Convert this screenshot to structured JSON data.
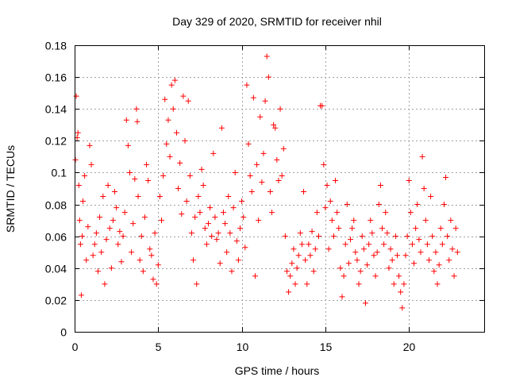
{
  "chart_data": {
    "type": "scatter",
    "title": "Day 329 of 2020, SRMTID for receiver nhil",
    "xlabel": "GPS time / hours",
    "ylabel": "SRMTID / TECUs",
    "xlim": [
      0,
      24.5
    ],
    "ylim": [
      0,
      0.18
    ],
    "xticks": [
      0,
      5,
      10,
      15,
      20
    ],
    "xtick_labels": [
      "0",
      "5",
      "10",
      "15",
      "20"
    ],
    "yticks": [
      0,
      0.02,
      0.04,
      0.06,
      0.08,
      0.1,
      0.12,
      0.14,
      0.16,
      0.18
    ],
    "ytick_labels": [
      "0",
      "0.02",
      "0.04",
      "0.06",
      "0.08",
      "0.1",
      "0.12",
      "0.14",
      "0.16",
      "0.18"
    ],
    "grid": true,
    "marker": "+",
    "color": "#ff0000",
    "series": [
      {
        "name": "SRMTID",
        "points": [
          [
            0.05,
            0.108
          ],
          [
            0.1,
            0.148
          ],
          [
            0.15,
            0.122
          ],
          [
            0.2,
            0.125
          ],
          [
            0.25,
            0.092
          ],
          [
            0.3,
            0.07
          ],
          [
            0.35,
            0.055
          ],
          [
            0.4,
            0.023
          ],
          [
            0.45,
            0.06
          ],
          [
            0.5,
            0.082
          ],
          [
            0.6,
            0.098
          ],
          [
            0.7,
            0.045
          ],
          [
            0.8,
            0.066
          ],
          [
            0.9,
            0.117
          ],
          [
            1.0,
            0.105
          ],
          [
            1.1,
            0.048
          ],
          [
            1.2,
            0.055
          ],
          [
            1.3,
            0.062
          ],
          [
            1.4,
            0.038
          ],
          [
            1.5,
            0.072
          ],
          [
            1.6,
            0.05
          ],
          [
            1.7,
            0.085
          ],
          [
            1.8,
            0.03
          ],
          [
            1.9,
            0.058
          ],
          [
            2.0,
            0.092
          ],
          [
            2.1,
            0.065
          ],
          [
            2.2,
            0.04
          ],
          [
            2.3,
            0.07
          ],
          [
            2.4,
            0.088
          ],
          [
            2.5,
            0.078
          ],
          [
            2.6,
            0.055
          ],
          [
            2.7,
            0.063
          ],
          [
            2.8,
            0.044
          ],
          [
            2.9,
            0.06
          ],
          [
            3.0,
            0.075
          ],
          [
            3.1,
            0.133
          ],
          [
            3.2,
            0.117
          ],
          [
            3.3,
            0.1
          ],
          [
            3.4,
            0.05
          ],
          [
            3.5,
            0.068
          ],
          [
            3.6,
            0.096
          ],
          [
            3.7,
            0.14
          ],
          [
            3.75,
            0.132
          ],
          [
            3.8,
            0.085
          ],
          [
            3.9,
            0.045
          ],
          [
            4.0,
            0.06
          ],
          [
            4.1,
            0.038
          ],
          [
            4.2,
            0.072
          ],
          [
            4.3,
            0.105
          ],
          [
            4.4,
            0.095
          ],
          [
            4.5,
            0.052
          ],
          [
            4.6,
            0.048
          ],
          [
            4.7,
            0.033
          ],
          [
            4.8,
            0.062
          ],
          [
            4.9,
            0.03
          ],
          [
            5.0,
            0.042
          ],
          [
            5.1,
            0.085
          ],
          [
            5.2,
            0.07
          ],
          [
            5.3,
            0.098
          ],
          [
            5.4,
            0.146
          ],
          [
            5.5,
            0.118
          ],
          [
            5.6,
            0.133
          ],
          [
            5.7,
            0.11
          ],
          [
            5.8,
            0.155
          ],
          [
            5.9,
            0.14
          ],
          [
            6.0,
            0.158
          ],
          [
            6.1,
            0.125
          ],
          [
            6.2,
            0.09
          ],
          [
            6.3,
            0.106
          ],
          [
            6.4,
            0.074
          ],
          [
            6.5,
            0.148
          ],
          [
            6.6,
            0.12
          ],
          [
            6.7,
            0.082
          ],
          [
            6.8,
            0.145
          ],
          [
            6.9,
            0.098
          ],
          [
            7.0,
            0.062
          ],
          [
            7.1,
            0.045
          ],
          [
            7.2,
            0.072
          ],
          [
            7.3,
            0.03
          ],
          [
            7.4,
            0.085
          ],
          [
            7.5,
            0.075
          ],
          [
            7.6,
            0.102
          ],
          [
            7.7,
            0.092
          ],
          [
            7.8,
            0.065
          ],
          [
            7.9,
            0.055
          ],
          [
            8.0,
            0.068
          ],
          [
            8.1,
            0.078
          ],
          [
            8.2,
            0.06
          ],
          [
            8.3,
            0.112
          ],
          [
            8.4,
            0.072
          ],
          [
            8.5,
            0.058
          ],
          [
            8.6,
            0.062
          ],
          [
            8.7,
            0.043
          ],
          [
            8.8,
            0.128
          ],
          [
            8.9,
            0.075
          ],
          [
            9.0,
            0.068
          ],
          [
            9.1,
            0.05
          ],
          [
            9.2,
            0.085
          ],
          [
            9.3,
            0.062
          ],
          [
            9.4,
            0.038
          ],
          [
            9.5,
            0.078
          ],
          [
            9.6,
            0.1
          ],
          [
            9.7,
            0.057
          ],
          [
            9.8,
            0.045
          ],
          [
            9.9,
            0.065
          ],
          [
            10.0,
            0.082
          ],
          [
            10.1,
            0.072
          ],
          [
            10.2,
            0.053
          ],
          [
            10.3,
            0.155
          ],
          [
            10.4,
            0.118
          ],
          [
            10.5,
            0.098
          ],
          [
            10.6,
            0.088
          ],
          [
            10.7,
            0.147
          ],
          [
            10.8,
            0.035
          ],
          [
            10.9,
            0.105
          ],
          [
            11.0,
            0.07
          ],
          [
            11.1,
            0.135
          ],
          [
            11.2,
            0.094
          ],
          [
            11.3,
            0.112
          ],
          [
            11.4,
            0.145
          ],
          [
            11.5,
            0.173
          ],
          [
            11.6,
            0.16
          ],
          [
            11.7,
            0.088
          ],
          [
            11.8,
            0.075
          ],
          [
            11.9,
            0.13
          ],
          [
            12.0,
            0.128
          ],
          [
            12.1,
            0.108
          ],
          [
            12.2,
            0.095
          ],
          [
            12.3,
            0.14
          ],
          [
            12.4,
            0.098
          ],
          [
            12.5,
            0.115
          ],
          [
            12.6,
            0.06
          ],
          [
            12.7,
            0.038
          ],
          [
            12.8,
            0.025
          ],
          [
            12.9,
            0.035
          ],
          [
            13.0,
            0.043
          ],
          [
            13.1,
            0.052
          ],
          [
            13.2,
            0.03
          ],
          [
            13.3,
            0.04
          ],
          [
            13.4,
            0.048
          ],
          [
            13.5,
            0.062
          ],
          [
            13.6,
            0.055
          ],
          [
            13.7,
            0.088
          ],
          [
            13.8,
            0.045
          ],
          [
            13.9,
            0.03
          ],
          [
            14.0,
            0.055
          ],
          [
            14.1,
            0.048
          ],
          [
            14.2,
            0.063
          ],
          [
            14.3,
            0.038
          ],
          [
            14.4,
            0.052
          ],
          [
            14.5,
            0.075
          ],
          [
            14.6,
            0.06
          ],
          [
            14.7,
            0.142
          ],
          [
            14.8,
            0.142
          ],
          [
            14.9,
            0.105
          ],
          [
            15.0,
            0.078
          ],
          [
            15.1,
            0.092
          ],
          [
            15.2,
            0.052
          ],
          [
            15.3,
            0.082
          ],
          [
            15.4,
            0.07
          ],
          [
            15.5,
            0.06
          ],
          [
            15.6,
            0.095
          ],
          [
            15.7,
            0.075
          ],
          [
            15.8,
            0.065
          ],
          [
            15.9,
            0.04
          ],
          [
            16.0,
            0.022
          ],
          [
            16.1,
            0.035
          ],
          [
            16.2,
            0.055
          ],
          [
            16.3,
            0.08
          ],
          [
            16.4,
            0.043
          ],
          [
            16.5,
            0.058
          ],
          [
            16.6,
            0.065
          ],
          [
            16.7,
            0.07
          ],
          [
            16.8,
            0.05
          ],
          [
            16.9,
            0.045
          ],
          [
            17.0,
            0.03
          ],
          [
            17.1,
            0.038
          ],
          [
            17.2,
            0.06
          ],
          [
            17.3,
            0.052
          ],
          [
            17.4,
            0.018
          ],
          [
            17.5,
            0.042
          ],
          [
            17.6,
            0.055
          ],
          [
            17.7,
            0.07
          ],
          [
            17.8,
            0.062
          ],
          [
            17.9,
            0.048
          ],
          [
            18.0,
            0.035
          ],
          [
            18.1,
            0.05
          ],
          [
            18.2,
            0.08
          ],
          [
            18.3,
            0.092
          ],
          [
            18.4,
            0.065
          ],
          [
            18.5,
            0.055
          ],
          [
            18.6,
            0.075
          ],
          [
            18.7,
            0.062
          ],
          [
            18.8,
            0.04
          ],
          [
            18.9,
            0.052
          ],
          [
            19.0,
            0.045
          ],
          [
            19.1,
            0.03
          ],
          [
            19.2,
            0.06
          ],
          [
            19.3,
            0.048
          ],
          [
            19.4,
            0.035
          ],
          [
            19.5,
            0.025
          ],
          [
            19.6,
            0.015
          ],
          [
            19.7,
            0.03
          ],
          [
            19.8,
            0.048
          ],
          [
            19.9,
            0.06
          ],
          [
            20.0,
            0.095
          ],
          [
            20.1,
            0.075
          ],
          [
            20.2,
            0.055
          ],
          [
            20.3,
            0.043
          ],
          [
            20.4,
            0.065
          ],
          [
            20.5,
            0.08
          ],
          [
            20.6,
            0.058
          ],
          [
            20.7,
            0.05
          ],
          [
            20.8,
            0.11
          ],
          [
            20.9,
            0.09
          ],
          [
            21.0,
            0.07
          ],
          [
            21.1,
            0.055
          ],
          [
            21.2,
            0.045
          ],
          [
            21.3,
            0.085
          ],
          [
            21.4,
            0.06
          ],
          [
            21.5,
            0.038
          ],
          [
            21.6,
            0.05
          ],
          [
            21.7,
            0.03
          ],
          [
            21.8,
            0.042
          ],
          [
            21.9,
            0.065
          ],
          [
            22.0,
            0.055
          ],
          [
            22.1,
            0.08
          ],
          [
            22.2,
            0.097
          ],
          [
            22.3,
            0.06
          ],
          [
            22.4,
            0.045
          ],
          [
            22.5,
            0.07
          ],
          [
            22.6,
            0.052
          ],
          [
            22.7,
            0.035
          ],
          [
            22.8,
            0.065
          ],
          [
            22.9,
            0.05
          ]
        ]
      }
    ]
  }
}
